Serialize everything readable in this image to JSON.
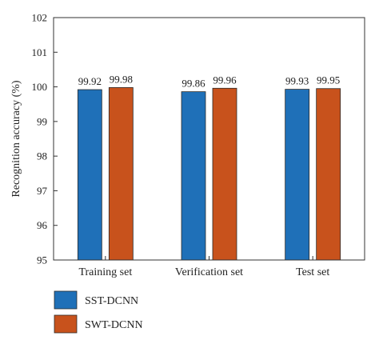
{
  "chart_data": {
    "type": "bar",
    "categories": [
      "Training set",
      "Verification set",
      "Test set"
    ],
    "series": [
      {
        "name": "SST-DCNN",
        "values": [
          99.92,
          99.86,
          99.93
        ],
        "color": "#1f70b8"
      },
      {
        "name": "SWT-DCNN",
        "values": [
          99.98,
          99.96,
          99.95
        ],
        "color": "#c8521c"
      }
    ],
    "data_labels": [
      [
        "99.92",
        "99.86",
        "99.93"
      ],
      [
        "99.98",
        "99.96",
        "99.95"
      ]
    ],
    "title": "",
    "xlabel": "",
    "ylabel": "Recognition accuracy (%)",
    "ylim": [
      95,
      102
    ],
    "yticks": [
      "95",
      "96",
      "97",
      "98",
      "99",
      "100",
      "101",
      "102"
    ],
    "grid": false,
    "legend_position": "bottom-left"
  }
}
